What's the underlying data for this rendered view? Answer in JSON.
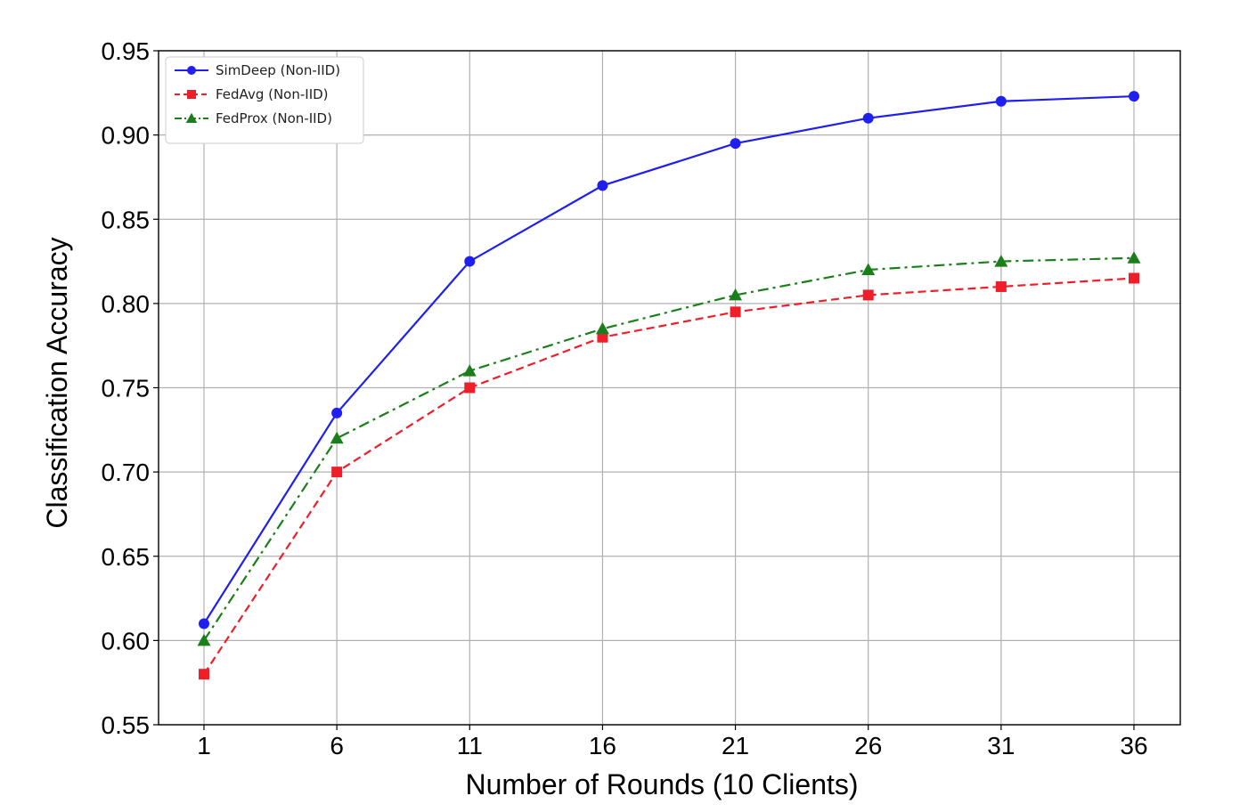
{
  "chart_data": {
    "type": "line",
    "title": "",
    "xlabel": "Number of Rounds (10 Clients)",
    "ylabel": "Classification Accuracy",
    "x": [
      1,
      6,
      11,
      16,
      21,
      26,
      31,
      36
    ],
    "x_tick_labels": [
      "1",
      "6",
      "11",
      "16",
      "21",
      "26",
      "31",
      "36"
    ],
    "ylim": [
      0.55,
      0.95
    ],
    "y_ticks": [
      0.55,
      0.6,
      0.65,
      0.7,
      0.75,
      0.8,
      0.85,
      0.9,
      0.95
    ],
    "y_tick_labels": [
      "0.55",
      "0.60",
      "0.65",
      "0.70",
      "0.75",
      "0.80",
      "0.85",
      "0.90",
      "0.95"
    ],
    "grid": true,
    "legend_position": "top-left",
    "series": [
      {
        "name": "SimDeep (Non-IID)",
        "color": "#1f1fef",
        "marker": "circle",
        "line_style": "solid",
        "values": [
          0.61,
          0.735,
          0.825,
          0.87,
          0.895,
          0.91,
          0.92,
          0.923
        ]
      },
      {
        "name": "FedAvg (Non-IID)",
        "color": "#ef1f2a",
        "marker": "square",
        "line_style": "dashed",
        "values": [
          0.58,
          0.7,
          0.75,
          0.78,
          0.795,
          0.805,
          0.81,
          0.815
        ]
      },
      {
        "name": "FedProx (Non-IID)",
        "color": "#1a7f1a",
        "marker": "triangle",
        "line_style": "dashdot",
        "values": [
          0.6,
          0.72,
          0.76,
          0.785,
          0.805,
          0.82,
          0.825,
          0.827
        ]
      }
    ]
  }
}
